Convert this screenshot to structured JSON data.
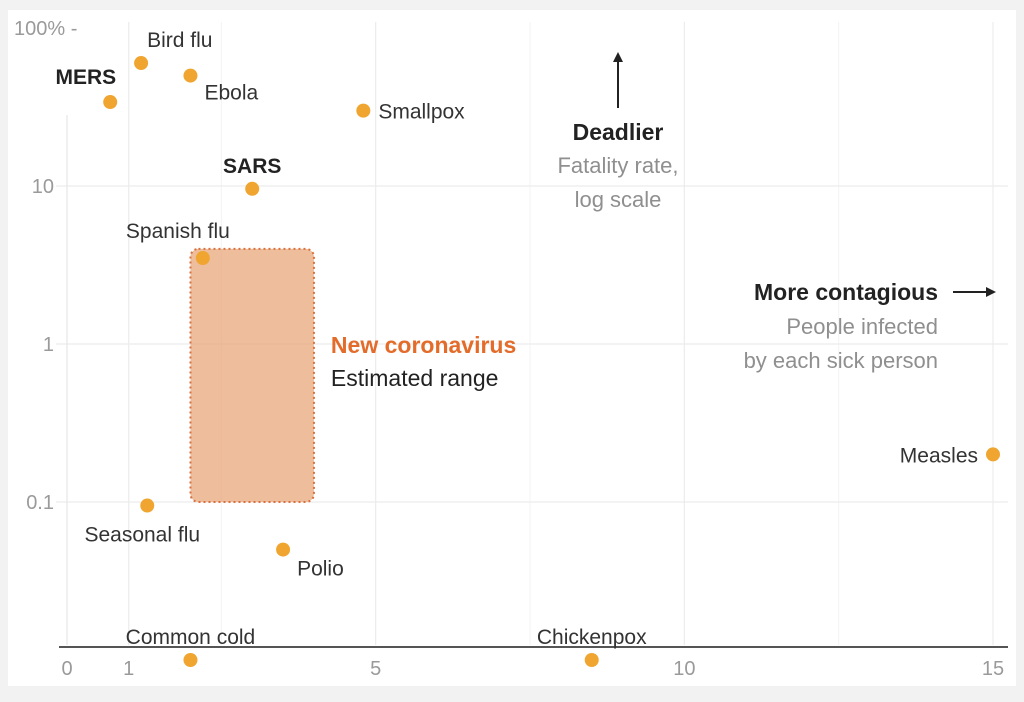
{
  "chart_data": {
    "type": "scatter",
    "x_scale": "linear",
    "y_scale": "log",
    "xlim": [
      0,
      15
    ],
    "ylim": [
      0.01,
      100
    ],
    "x_ticks": [
      {
        "value": 0,
        "label": "0"
      },
      {
        "value": 1,
        "label": "1"
      },
      {
        "value": 5,
        "label": "5"
      },
      {
        "value": 10,
        "label": "10"
      },
      {
        "value": 15,
        "label": "15"
      }
    ],
    "y_ticks": [
      {
        "value": 100,
        "label": "100% -"
      },
      {
        "value": 10,
        "label": "10"
      },
      {
        "value": 1,
        "label": "1"
      },
      {
        "value": 0.1,
        "label": "0.1"
      }
    ],
    "grid": true,
    "points": [
      {
        "name": "Bird flu",
        "x": 1.2,
        "y": 60,
        "bold": false,
        "label_pos": "above-right"
      },
      {
        "name": "MERS",
        "x": 0.7,
        "y": 34,
        "bold": true,
        "label_pos": "above-left"
      },
      {
        "name": "Ebola",
        "x": 2.0,
        "y": 50,
        "bold": false,
        "label_pos": "below-right"
      },
      {
        "name": "Smallpox",
        "x": 4.8,
        "y": 30,
        "bold": false,
        "label_pos": "right"
      },
      {
        "name": "SARS",
        "x": 3.0,
        "y": 9.6,
        "bold": true,
        "label_pos": "above"
      },
      {
        "name": "Spanish flu",
        "x": 2.2,
        "y": 3.5,
        "bold": false,
        "label_pos": "above-left"
      },
      {
        "name": "Seasonal flu",
        "x": 1.3,
        "y": 0.095,
        "bold": false,
        "label_pos": "below"
      },
      {
        "name": "Polio",
        "x": 3.5,
        "y": 0.05,
        "bold": false,
        "label_pos": "below-right"
      },
      {
        "name": "Common cold",
        "x": 2.0,
        "y": 0.01,
        "bold": false,
        "label_pos": "above"
      },
      {
        "name": "Chickenpox",
        "x": 8.5,
        "y": 0.01,
        "bold": false,
        "label_pos": "above"
      },
      {
        "name": "Measles",
        "x": 15,
        "y": 0.2,
        "bold": false,
        "label_pos": "left"
      }
    ],
    "range_box": {
      "title": "New coronavirus",
      "subtitle": "Estimated range",
      "x_range": [
        2.0,
        4.0
      ],
      "y_range": [
        0.1,
        4.0
      ]
    },
    "annotations": {
      "y_axis": {
        "title": "Deadlier",
        "lines": [
          "Fatality rate,",
          "log scale"
        ]
      },
      "x_axis": {
        "title": "More contagious",
        "lines": [
          "People infected",
          "by each sick person"
        ]
      }
    },
    "colors": {
      "point": "#f0a530",
      "range_fill": "#e8a476",
      "range_border": "#d9703d",
      "range_title": "#e36c2a",
      "grid": "#ececec",
      "axis": "#555555"
    }
  }
}
